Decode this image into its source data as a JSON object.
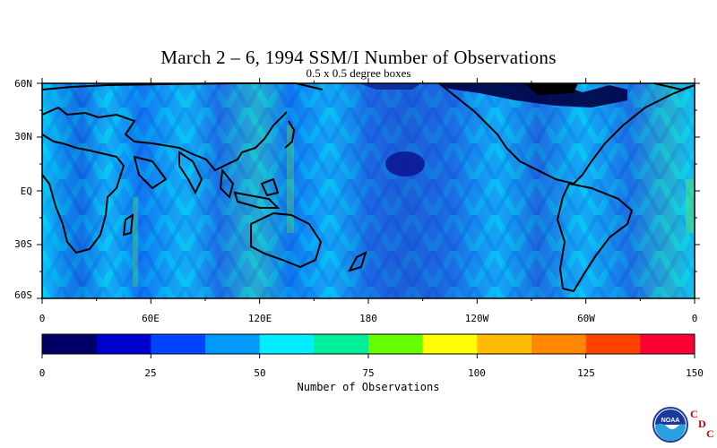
{
  "title": "March 2 – 6, 1994 SSM/I Number of Observations",
  "subtitle": "0.5 x 0.5 degree boxes",
  "lat_labels": [
    "60N",
    "30N",
    "EQ",
    "30S",
    "60S"
  ],
  "lon_labels": [
    "0",
    "60E",
    "120E",
    "180",
    "120W",
    "60W",
    "0"
  ],
  "colorbar": {
    "title": "Number of Observations",
    "tick_labels": [
      "0",
      "25",
      "50",
      "75",
      "100",
      "125",
      "150"
    ],
    "colors": [
      "#000066",
      "#0000cc",
      "#0044ff",
      "#0099ff",
      "#00eeff",
      "#00ee99",
      "#66ff00",
      "#ffff00",
      "#ffbb00",
      "#ff8800",
      "#ff4400",
      "#ff0033"
    ]
  },
  "logo": {
    "text": "NOAA",
    "letters": [
      "C",
      "D",
      "C"
    ]
  }
}
